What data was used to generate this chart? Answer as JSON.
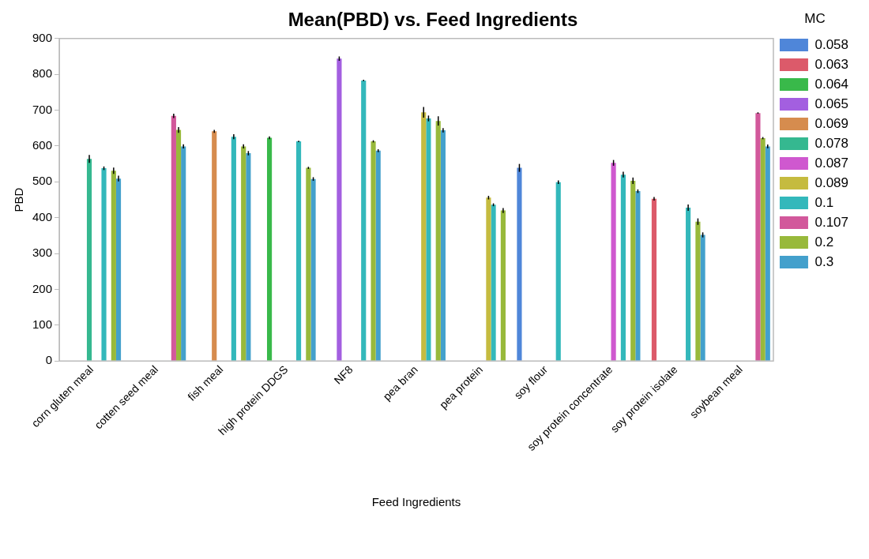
{
  "chart_data": {
    "type": "bar",
    "title": "Mean(PBD) vs. Feed Ingredients",
    "xlabel": "Feed Ingredients",
    "ylabel": "PBD",
    "legend_title": "MC",
    "legend": "right",
    "grid": false,
    "categories": [
      "corn gluten meal",
      "cotten seed meal",
      "fish meal",
      "high protein DDGS",
      "NF8",
      "pea bran",
      "pea protein",
      "soy flour",
      "soy protein concentrate",
      "soy protein isolate",
      "soybean meal"
    ],
    "ylim": [
      0,
      900
    ],
    "yticks": [
      0,
      100,
      200,
      300,
      400,
      500,
      600,
      700,
      800,
      900
    ],
    "series": [
      {
        "name": "0.058",
        "color": "#4f86d9",
        "values": [
          null,
          null,
          null,
          null,
          null,
          null,
          null,
          539,
          null,
          null,
          null
        ],
        "errors": [
          null,
          null,
          null,
          null,
          null,
          null,
          null,
          11,
          null,
          null,
          null
        ]
      },
      {
        "name": "0.063",
        "color": "#dc5a6a",
        "values": [
          null,
          null,
          null,
          null,
          null,
          null,
          null,
          null,
          null,
          453,
          null
        ],
        "errors": [
          null,
          null,
          null,
          null,
          null,
          null,
          null,
          null,
          null,
          5,
          null
        ]
      },
      {
        "name": "0.064",
        "color": "#39b94a",
        "values": [
          null,
          null,
          null,
          623,
          null,
          null,
          null,
          null,
          null,
          null,
          null
        ],
        "errors": [
          null,
          null,
          null,
          4,
          null,
          null,
          null,
          null,
          null,
          null,
          null
        ]
      },
      {
        "name": "0.065",
        "color": "#a35fe0",
        "values": [
          null,
          null,
          null,
          null,
          844,
          null,
          null,
          null,
          null,
          null,
          null
        ],
        "errors": [
          null,
          null,
          null,
          null,
          6,
          null,
          null,
          null,
          null,
          null,
          null
        ]
      },
      {
        "name": "0.069",
        "color": "#d68c4e",
        "values": [
          null,
          null,
          641,
          null,
          null,
          null,
          null,
          null,
          null,
          null,
          null
        ],
        "errors": [
          null,
          null,
          4,
          null,
          null,
          null,
          null,
          null,
          null,
          null,
          null
        ]
      },
      {
        "name": "0.078",
        "color": "#35b890",
        "values": [
          564,
          null,
          null,
          null,
          null,
          null,
          null,
          null,
          null,
          null,
          null
        ],
        "errors": [
          11,
          null,
          null,
          null,
          null,
          null,
          null,
          null,
          null,
          null,
          null
        ]
      },
      {
        "name": "0.087",
        "color": "#cf58cf",
        "values": [
          null,
          null,
          null,
          null,
          null,
          null,
          null,
          null,
          553,
          null,
          null
        ],
        "errors": [
          null,
          null,
          null,
          null,
          null,
          null,
          null,
          null,
          8,
          null,
          null
        ]
      },
      {
        "name": "0.089",
        "color": "#c5bb3f",
        "values": [
          null,
          null,
          null,
          null,
          null,
          694,
          456,
          null,
          null,
          null,
          null
        ],
        "errors": [
          null,
          null,
          null,
          null,
          null,
          15,
          5,
          null,
          null,
          null,
          null
        ]
      },
      {
        "name": "0.1",
        "color": "#33b8bb",
        "values": [
          538,
          null,
          626,
          613,
          783,
          677,
          436,
          499,
          520,
          428,
          null
        ],
        "errors": [
          5,
          null,
          7,
          2,
          2,
          8,
          4,
          5,
          8,
          9,
          null
        ]
      },
      {
        "name": "0.107",
        "color": "#d2589b",
        "values": [
          null,
          684,
          null,
          null,
          null,
          null,
          null,
          null,
          null,
          null,
          692
        ],
        "errors": [
          null,
          6,
          null,
          null,
          null,
          null,
          null,
          null,
          null,
          null,
          2
        ]
      },
      {
        "name": "0.2",
        "color": "#98b93b",
        "values": [
          531,
          645,
          599,
          539,
          613,
          670,
          420,
          null,
          503,
          389,
          622
        ],
        "errors": [
          9,
          8,
          6,
          3,
          3,
          13,
          7,
          null,
          9,
          9,
          3
        ]
      },
      {
        "name": "0.3",
        "color": "#43a0cc",
        "values": [
          509,
          599,
          580,
          508,
          587,
          644,
          null,
          null,
          474,
          352,
          599
        ],
        "errors": [
          8,
          6,
          6,
          5,
          4,
          6,
          null,
          null,
          5,
          7,
          5
        ]
      }
    ]
  }
}
